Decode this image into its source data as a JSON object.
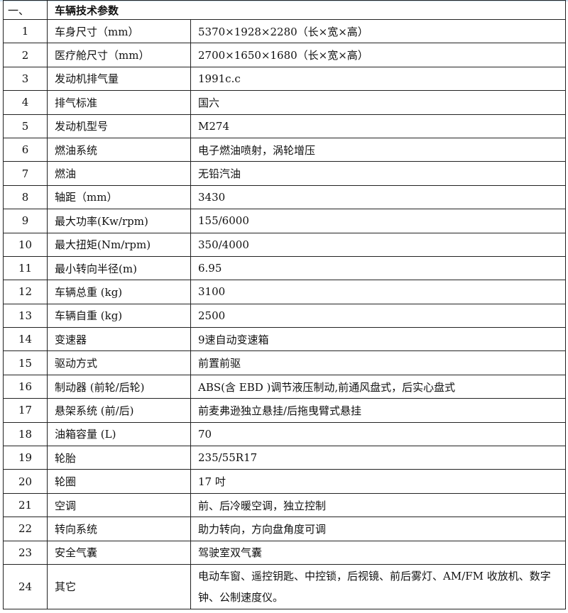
{
  "section": {
    "number": "一、",
    "title": "车辆技术参数"
  },
  "rows": [
    {
      "no": "1",
      "item": "车身尺寸（mm）",
      "value": "5370×1928×2280（长×宽×高）"
    },
    {
      "no": "2",
      "item": "医疗舱尺寸（mm）",
      "value": "2700×1650×1680（长×宽×高）"
    },
    {
      "no": "3",
      "item": "发动机排气量",
      "value": "1991c.c"
    },
    {
      "no": "4",
      "item": "排气标准",
      "value": "国六"
    },
    {
      "no": "5",
      "item": "发动机型号",
      "value": "M274"
    },
    {
      "no": "6",
      "item": "燃油系统",
      "value": "电子燃油喷射，涡轮增压"
    },
    {
      "no": "7",
      "item": "燃油",
      "value": "无铅汽油"
    },
    {
      "no": "8",
      "item": "轴距（mm）",
      "value": "3430"
    },
    {
      "no": "9",
      "item": "最大功率(Kw/rpm)",
      "value": "155/6000"
    },
    {
      "no": "10",
      "item": "最大扭矩(Nm/rpm)",
      "value": "350/4000"
    },
    {
      "no": "11",
      "item": "最小转向半径(m)",
      "value": "6.95"
    },
    {
      "no": "12",
      "item": "车辆总重 (kg)",
      "value": "3100"
    },
    {
      "no": "13",
      "item": "车辆自重 (kg)",
      "value": "2500"
    },
    {
      "no": "14",
      "item": "变速器",
      "value": "9速自动变速箱"
    },
    {
      "no": "15",
      "item": "驱动方式",
      "value": "前置前驱"
    },
    {
      "no": "16",
      "item": "制动器 (前轮/后轮)",
      "value": "ABS(含 EBD )调节液压制动,前通风盘式，后实心盘式"
    },
    {
      "no": "17",
      "item": "悬架系统 (前/后)",
      "value": "前麦弗逊独立悬挂/后拖曳臂式悬挂"
    },
    {
      "no": "18",
      "item": "油箱容量 (L)",
      "value": "70"
    },
    {
      "no": "19",
      "item": "轮胎",
      "value": "235/55R17"
    },
    {
      "no": "20",
      "item": "轮圈",
      "value": "17 吋"
    },
    {
      "no": "21",
      "item": "空调",
      "value": "前、后冷暖空调，独立控制"
    },
    {
      "no": "22",
      "item": "转向系统",
      "value": "助力转向，方向盘角度可调"
    },
    {
      "no": "23",
      "item": "安全气囊",
      "value": "驾驶室双气囊"
    },
    {
      "no": "24",
      "item": "其它",
      "value": "电动车窗、遥控钥匙、中控锁，后视镜、前后雾灯、AM/FM 收放机、数字钟、公制速度仪。"
    }
  ]
}
